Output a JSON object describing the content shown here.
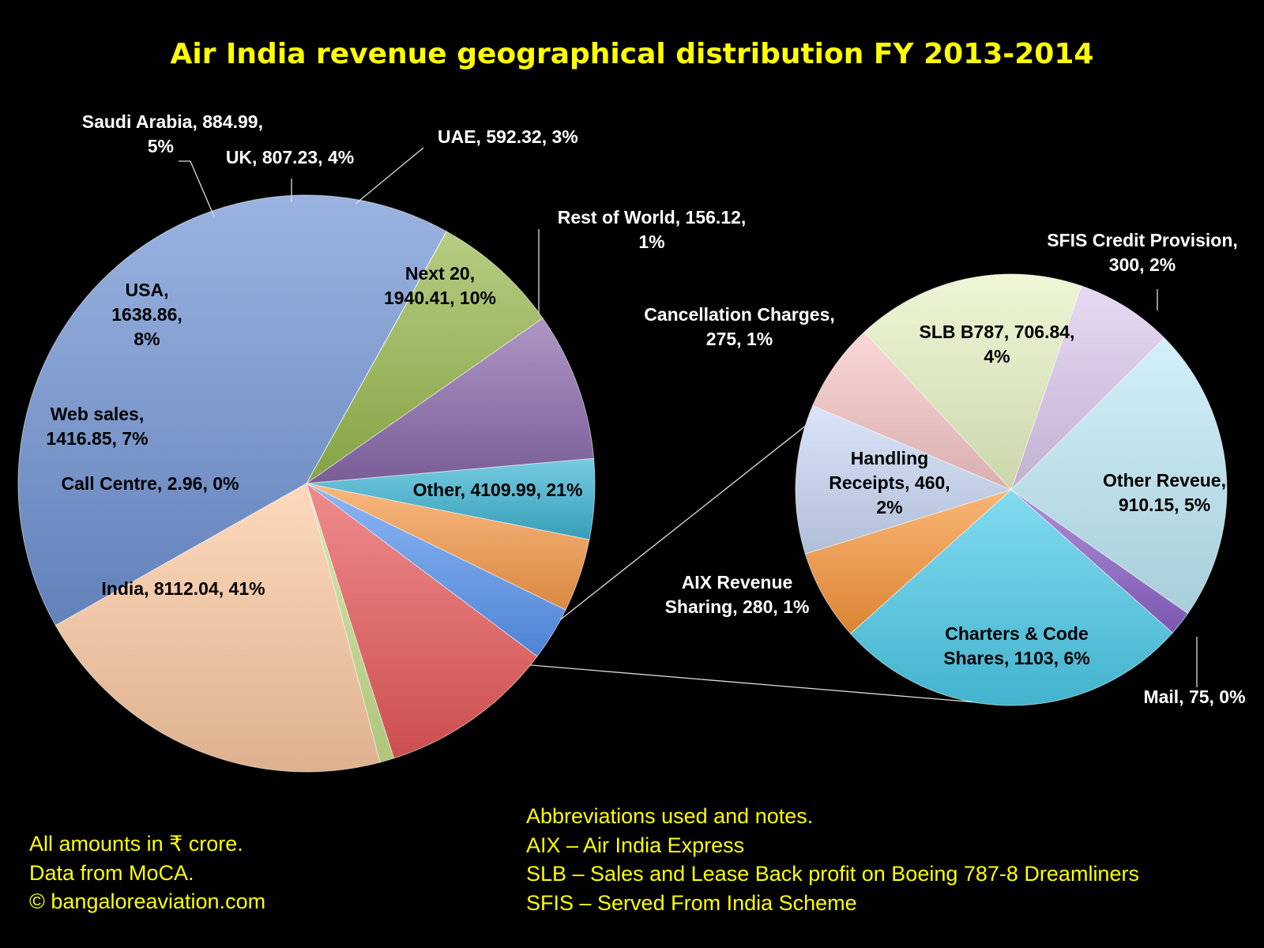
{
  "chart_data": [
    {
      "type": "pie",
      "title": "Air India revenue geographical distribution FY  2013-2014",
      "slices": [
        {
          "label": "India, 8112.04, 41%",
          "name": "India",
          "value": 8112.04,
          "percent": 41,
          "color": "#6f93d3"
        },
        {
          "label": "Call Centre, 2.96, 0%",
          "name": "Call Centre",
          "value": 2.96,
          "percent": 0,
          "color": "#7a94cf"
        },
        {
          "label": "Web sales, 1416.85, 7%",
          "name": "Web sales",
          "value": 1416.85,
          "percent": 7,
          "color": "#97b84d"
        },
        {
          "label": "USA, 1638.86, 8%",
          "name": "USA",
          "value": 1638.86,
          "percent": 8,
          "color": "#8a6aac"
        },
        {
          "label": "Saudi Arabia, 884.99, 5%",
          "name": "Saudi Arabia",
          "value": 884.99,
          "percent": 5,
          "color": "#3cb4d2"
        },
        {
          "label": "UK, 807.23, 4%",
          "name": "UK",
          "value": 807.23,
          "percent": 4,
          "color": "#f79a4a"
        },
        {
          "label": "UAE, 592.32, 3%",
          "name": "UAE",
          "value": 592.32,
          "percent": 3,
          "color": "#5a96f0"
        },
        {
          "label": "Next 20, 1940.41, 10%",
          "name": "Next 20",
          "value": 1940.41,
          "percent": 10,
          "color": "#e8595a"
        },
        {
          "label": "Rest of World, 156.12, 1%",
          "name": "Rest of World",
          "value": 156.12,
          "percent": 1,
          "color": "#c6e08c"
        },
        {
          "label": "Other, 4109.99, 21%",
          "name": "Other",
          "value": 4109.99,
          "percent": 21,
          "color": "#fcc9a0"
        }
      ],
      "breakdown_of": "Other",
      "breakdown": [
        {
          "label": "SFIS Credit Provision, 300, 2%",
          "name": "SFIS Credit Provision",
          "value": 300,
          "percent": 2,
          "color": "#dcc8ee"
        },
        {
          "label": "Other Reveue, 910.15, 5%",
          "name": "Other Reveue",
          "value": 910.15,
          "percent": 5,
          "color": "#bfeaf7"
        },
        {
          "label": "Mail, 75, 0%",
          "name": "Mail",
          "value": 75,
          "percent": 0,
          "color": "#8c62c8"
        },
        {
          "label": "Charters & Code Shares, 1103, 6%",
          "name": "Charters & Code Shares",
          "value": 1103,
          "percent": 6,
          "color": "#4ccbea"
        },
        {
          "label": "AIX Revenue Sharing, 280, 1%",
          "name": "AIX Revenue Sharing",
          "value": 280,
          "percent": 1,
          "color": "#f8963a"
        },
        {
          "label": "Handling Receipts, 460, 2%",
          "name": "Handling Receipts",
          "value": 460,
          "percent": 2,
          "color": "#c9d8f5"
        },
        {
          "label": "Cancellation Charges, 275, 1%",
          "name": "Cancellation Charges",
          "value": 275,
          "percent": 1,
          "color": "#f8c6c6"
        },
        {
          "label": "SLB B787, 706.84, 4%",
          "name": "SLB B787",
          "value": 706.84,
          "percent": 4,
          "color": "#e7f3c4"
        }
      ]
    }
  ],
  "colors": {
    "background": "#000000",
    "title": "#ffff00",
    "notes": "#ffff00",
    "outside_labels": "#ffffff",
    "inside_labels": "#000000",
    "leader_lines": "#dddddd"
  },
  "notes_left": [
    "All amounts in ₹ crore.",
    "Data from MoCA.",
    "© bangaloreaviation.com"
  ],
  "notes_right": [
    "Abbreviations used and notes.",
    "AIX – Air India Express",
    "SLB – Sales and Lease Back profit on Boeing 787-8 Dreamliners",
    "SFIS – Served From India Scheme"
  ]
}
